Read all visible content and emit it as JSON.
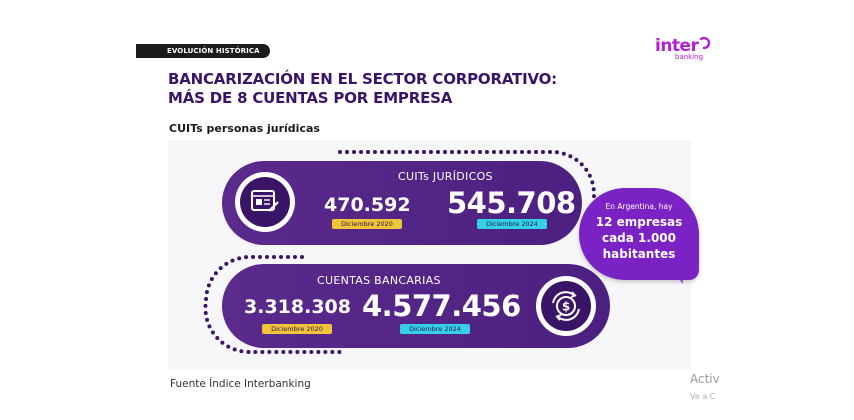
{
  "header": {
    "section_tag": "EVOLUCIÓN HISTÓRICA",
    "title_line1": "BANCARIZACIÓN EN EL SECTOR CORPORATIVO:",
    "title_line2": "MÁS DE 8 CUENTAS POR EMPRESA",
    "subtitle": "CUITs personas jurídicas"
  },
  "logo": {
    "main": "inter",
    "sub": "banking"
  },
  "cuits": {
    "title": "CUITs JURÍDICOS",
    "value_2020": "470.592",
    "label_2020": "Diciembre 2020",
    "value_2024": "545.708",
    "label_2024": "Diciembre 2024",
    "icon": "document-icon"
  },
  "cuentas": {
    "title": "CUENTAS BANCARIAS",
    "value_2020": "3.318.308",
    "label_2020": "Diciembre 2020",
    "value_2024": "4.577.456",
    "label_2024": "Diciembre 2024",
    "icon": "dollar-cycle-icon"
  },
  "badge": {
    "line1": "En Argentina, hay",
    "line2": "12 empresas",
    "line3": "cada 1.000",
    "line4": "habitantes"
  },
  "footer": {
    "source": "Fuente Índice Interbanking"
  },
  "overlay": {
    "line1": "Activ",
    "line2": "Ve a C"
  },
  "colors": {
    "brand_dark": "#3a1466",
    "pill": "#5a2a8c",
    "accent_magenta": "#b31fd4",
    "tag_yellow": "#f2c43a",
    "tag_cyan": "#34d0e8",
    "badge": "#7a22c4"
  }
}
